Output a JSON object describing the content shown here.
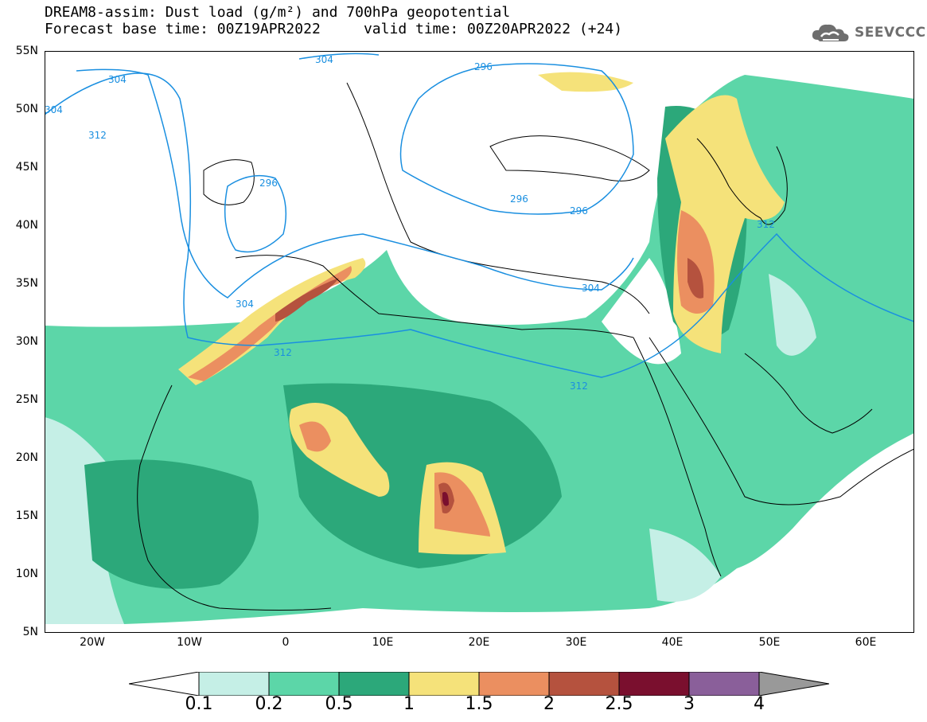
{
  "header": {
    "title_line1": "DREAM8-assim: Dust load (g/m²) and 700hPa geopotential",
    "title_line2": "Forecast base time: 00Z19APR2022     valid time: 00Z20APR2022 (+24)"
  },
  "brand": {
    "name": "SEEVCCC",
    "icon": "cloud-logo-icon"
  },
  "axes": {
    "latitudes": [
      "55N",
      "50N",
      "45N",
      "40N",
      "35N",
      "30N",
      "25N",
      "20N",
      "15N",
      "10N",
      "5N"
    ],
    "longitudes": [
      "20W",
      "10W",
      "0",
      "10E",
      "20E",
      "30E",
      "40E",
      "50E",
      "60E"
    ]
  },
  "contour_labels": [
    "304",
    "304",
    "304",
    "312",
    "296",
    "296",
    "296",
    "296",
    "312",
    "304",
    "312",
    "304",
    "312"
  ],
  "legend": {
    "ticks": [
      "0.1",
      "0.2",
      "0.5",
      "1",
      "1.5",
      "2",
      "2.5",
      "3",
      "4"
    ],
    "colors": [
      "#c5efe6",
      "#5cd6a8",
      "#2ca87a",
      "#f5e27a",
      "#eb8f60",
      "#b5523e",
      "#7a0f2e",
      "#8a5f9a"
    ],
    "under_color": "#ffffff",
    "over_color": "#999999"
  },
  "colors": {
    "contour": "#1a8fe0",
    "coast": "#000000"
  }
}
